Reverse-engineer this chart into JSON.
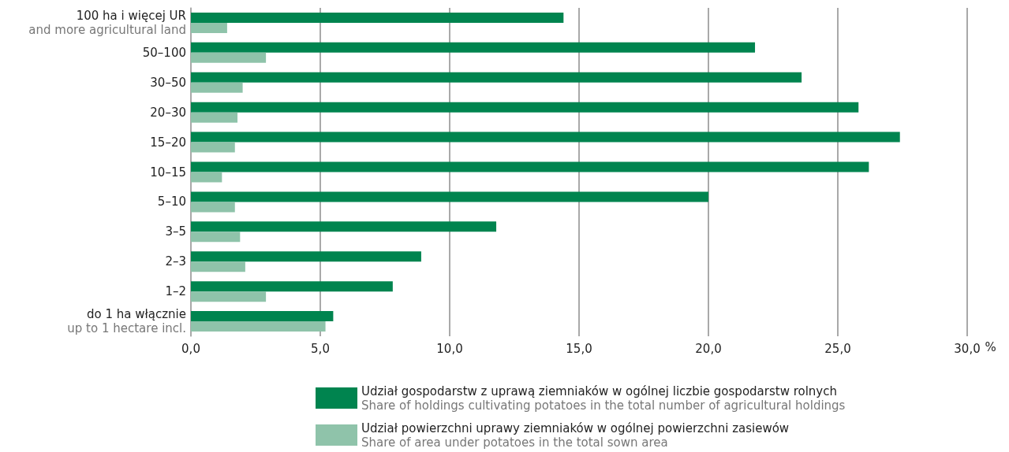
{
  "chart_data": {
    "type": "bar",
    "orientation": "horizontal",
    "xlabel": "%",
    "categories": [
      "100 ha i więcej UR\nand more agricultural land",
      "50–100",
      "30–50",
      "20–30",
      "15–20",
      "10–15",
      "5–10",
      "3–5",
      "2–3",
      "1–2",
      "do 1 ha włącznie\nup to 1 hectare incl."
    ],
    "series": [
      {
        "name": "Udział gospodarstw z uprawą ziemniaków w ogólnej liczbie gospodarstw rolnych\nShare of holdings cultivating potatoes in the total number of agricultural holdings",
        "color": "#00844f",
        "values": [
          14.4,
          21.8,
          23.6,
          25.8,
          27.4,
          26.2,
          20.0,
          11.8,
          8.9,
          7.8,
          5.5
        ]
      },
      {
        "name": "Udział powierzchni uprawy ziemniaków w ogólnej powierzchni zasiewów\nShare of area under potatoes in the total sown area",
        "color": "#8fc3aa",
        "values": [
          1.4,
          2.9,
          2.0,
          1.8,
          1.7,
          1.2,
          1.7,
          1.9,
          2.1,
          2.9,
          5.2
        ]
      }
    ],
    "xlim": [
      0,
      30
    ],
    "xticks": [
      {
        "value": 0,
        "label": "0,0"
      },
      {
        "value": 5,
        "label": "5,0"
      },
      {
        "value": 10,
        "label": "10,0"
      },
      {
        "value": 15,
        "label": "15,0"
      },
      {
        "value": 20,
        "label": "20,0"
      },
      {
        "value": 25,
        "label": "25,0"
      },
      {
        "value": 30,
        "label": "30,0"
      }
    ],
    "grid": "x",
    "legend": "bottom"
  }
}
